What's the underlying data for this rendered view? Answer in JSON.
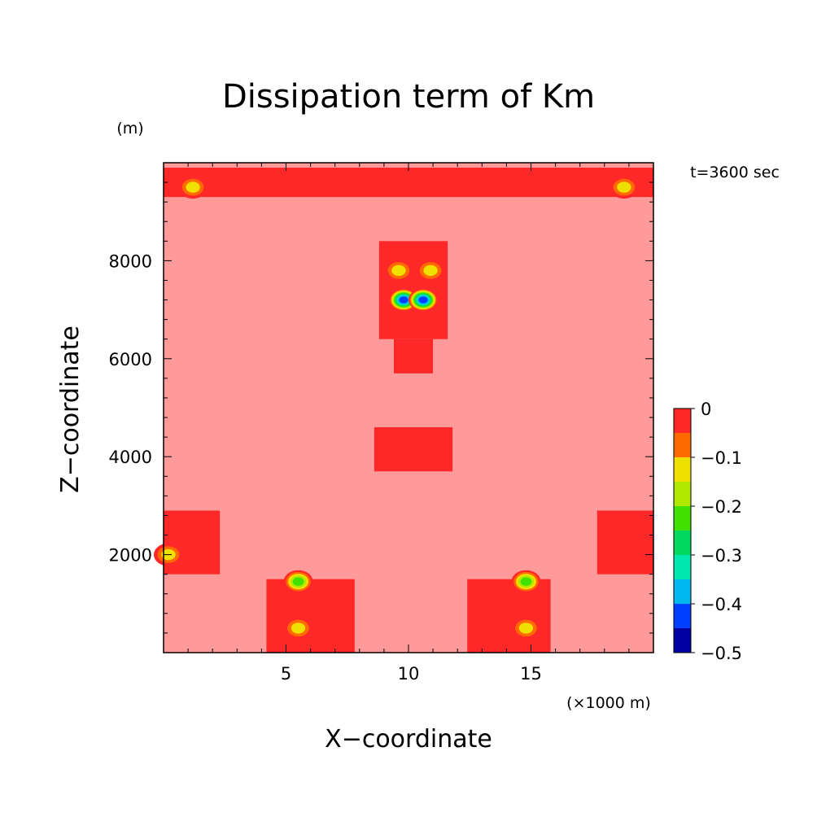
{
  "chart_data": {
    "type": "heatmap",
    "title": "Dissipation term of Km",
    "xlabel": "X−coordinate",
    "ylabel": "Z−coordinate",
    "x_unit": "(×1000 m)",
    "y_unit": "(m)",
    "time_label": "t=3600 sec",
    "xlim": [
      0,
      20
    ],
    "ylim": [
      0,
      10000
    ],
    "x_ticks": [
      5,
      10,
      15
    ],
    "y_ticks": [
      2000,
      4000,
      6000,
      8000
    ],
    "colorbar": {
      "levels": [
        -0.5,
        -0.45,
        -0.4,
        -0.35,
        -0.3,
        -0.25,
        -0.2,
        -0.15,
        -0.1,
        -0.05,
        0
      ],
      "tick_labels": [
        "0",
        "−0.1",
        "−0.2",
        "−0.3",
        "−0.4",
        "−0.5"
      ],
      "colors": [
        "#0000a0",
        "#0040ff",
        "#00b8f0",
        "#00e8b0",
        "#00d860",
        "#40e000",
        "#b0e800",
        "#f0e000",
        "#ff6a00",
        "#ff2828"
      ]
    },
    "background_color": "#ff9a9a",
    "regions": [
      {
        "level": -0.025,
        "x": [
          0,
          20
        ],
        "z": [
          9300,
          9900
        ]
      },
      {
        "level": -0.025,
        "x": [
          8.8,
          11.6
        ],
        "z": [
          6400,
          8400
        ]
      },
      {
        "level": -0.025,
        "x": [
          9.4,
          11.0
        ],
        "z": [
          5700,
          6400
        ]
      },
      {
        "level": -0.025,
        "x": [
          8.6,
          11.8
        ],
        "z": [
          3700,
          4600
        ]
      },
      {
        "level": -0.025,
        "x": [
          0,
          2.3
        ],
        "z": [
          1600,
          2900
        ]
      },
      {
        "level": -0.025,
        "x": [
          17.7,
          20
        ],
        "z": [
          1600,
          2900
        ]
      },
      {
        "level": -0.025,
        "x": [
          4.2,
          7.8
        ],
        "z": [
          0,
          1500
        ]
      },
      {
        "level": -0.025,
        "x": [
          12.4,
          15.8
        ],
        "z": [
          0,
          1500
        ]
      }
    ],
    "extrema": [
      {
        "x": 1.2,
        "z": 9500,
        "min_level": -0.15
      },
      {
        "x": 18.8,
        "z": 9500,
        "min_level": -0.15
      },
      {
        "x": 9.6,
        "z": 7800,
        "min_level": -0.15
      },
      {
        "x": 10.9,
        "z": 7800,
        "min_level": -0.15
      },
      {
        "x": 9.8,
        "z": 7200,
        "min_level": -0.45
      },
      {
        "x": 10.6,
        "z": 7200,
        "min_level": -0.45
      },
      {
        "x": 0.2,
        "z": 2000,
        "min_level": -0.15
      },
      {
        "x": 5.5,
        "z": 1450,
        "min_level": -0.25
      },
      {
        "x": 14.8,
        "z": 1450,
        "min_level": -0.25
      },
      {
        "x": 5.5,
        "z": 500,
        "min_level": -0.15
      },
      {
        "x": 14.8,
        "z": 500,
        "min_level": -0.15
      }
    ]
  }
}
